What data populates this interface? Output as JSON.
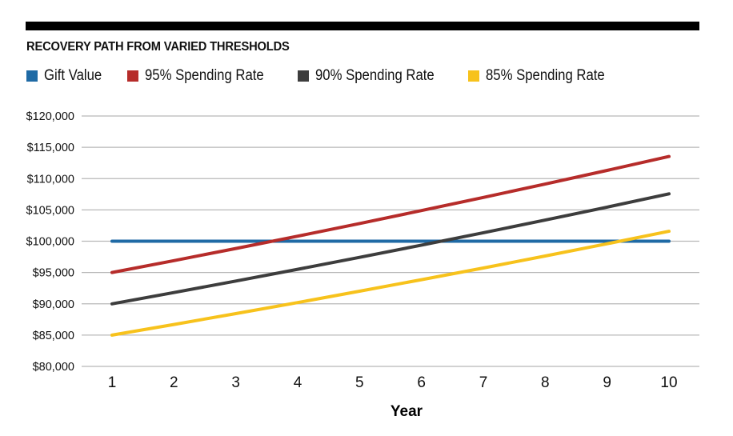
{
  "chart_data": {
    "type": "line",
    "title": "RECOVERY PATH FROM VARIED THRESHOLDS",
    "xlabel": "Year",
    "ylabel": "",
    "x": [
      1,
      2,
      3,
      4,
      5,
      6,
      7,
      8,
      9,
      10
    ],
    "xticks": [
      "1",
      "2",
      "3",
      "4",
      "5",
      "6",
      "7",
      "8",
      "9",
      "10"
    ],
    "ylim": [
      80000,
      120000
    ],
    "yticks": [
      80000,
      85000,
      90000,
      95000,
      100000,
      105000,
      110000,
      115000,
      120000
    ],
    "ytick_labels": [
      "$80,000",
      "$85,000",
      "$90,000",
      "$95,000",
      "$100,000",
      "$105,000",
      "$110,000",
      "$115,000",
      "$120,000"
    ],
    "grid": "horizontal",
    "legend_position": "top-left",
    "series": [
      {
        "name": "Gift Value",
        "color": "#1f6aa5",
        "values": [
          100000,
          100000,
          100000,
          100000,
          100000,
          100000,
          100000,
          100000,
          100000,
          100000
        ]
      },
      {
        "name": "95% Spending Rate",
        "color": "#b62c2a",
        "values": [
          95000,
          96900,
          98840,
          100810,
          102830,
          104890,
          106990,
          109130,
          111310,
          113530
        ]
      },
      {
        "name": "90% Spending Rate",
        "color": "#3d3d3d",
        "values": [
          90000,
          91800,
          93640,
          95510,
          97420,
          99370,
          101350,
          103380,
          105450,
          107560
        ]
      },
      {
        "name": "85% Spending Rate",
        "color": "#f7c21c",
        "values": [
          85000,
          86700,
          88430,
          90200,
          92010,
          93850,
          95720,
          97640,
          99590,
          101580
        ]
      }
    ]
  }
}
